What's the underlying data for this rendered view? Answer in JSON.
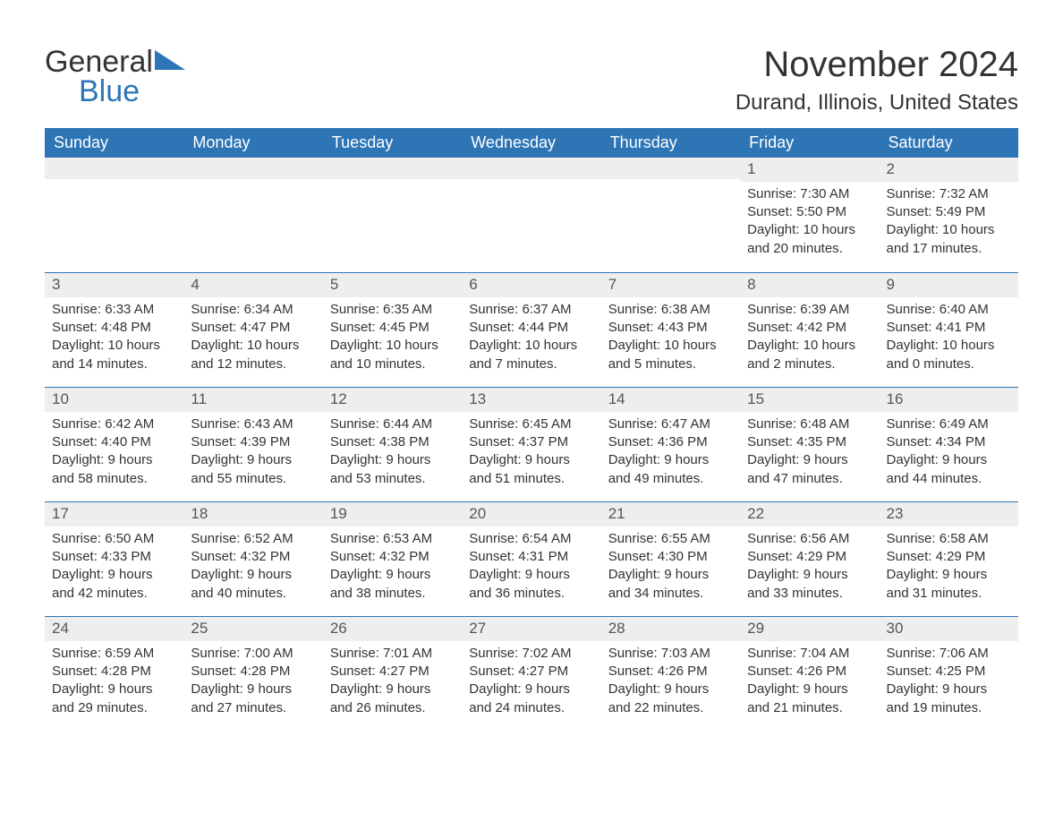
{
  "logo": {
    "general": "General",
    "blue": "Blue",
    "shape_color": "#2e75b6"
  },
  "title": "November 2024",
  "location": "Durand, Illinois, United States",
  "header_bg": "#2e75b6",
  "header_fg": "#ffffff",
  "daynum_bg": "#eeeeee",
  "divider_color": "#2e75b6",
  "text_color": "#333333",
  "day_headers": [
    "Sunday",
    "Monday",
    "Tuesday",
    "Wednesday",
    "Thursday",
    "Friday",
    "Saturday"
  ],
  "weeks": [
    [
      null,
      null,
      null,
      null,
      null,
      {
        "n": "1",
        "sunrise": "Sunrise: 7:30 AM",
        "sunset": "Sunset: 5:50 PM",
        "day1": "Daylight: 10 hours",
        "day2": "and 20 minutes."
      },
      {
        "n": "2",
        "sunrise": "Sunrise: 7:32 AM",
        "sunset": "Sunset: 5:49 PM",
        "day1": "Daylight: 10 hours",
        "day2": "and 17 minutes."
      }
    ],
    [
      {
        "n": "3",
        "sunrise": "Sunrise: 6:33 AM",
        "sunset": "Sunset: 4:48 PM",
        "day1": "Daylight: 10 hours",
        "day2": "and 14 minutes."
      },
      {
        "n": "4",
        "sunrise": "Sunrise: 6:34 AM",
        "sunset": "Sunset: 4:47 PM",
        "day1": "Daylight: 10 hours",
        "day2": "and 12 minutes."
      },
      {
        "n": "5",
        "sunrise": "Sunrise: 6:35 AM",
        "sunset": "Sunset: 4:45 PM",
        "day1": "Daylight: 10 hours",
        "day2": "and 10 minutes."
      },
      {
        "n": "6",
        "sunrise": "Sunrise: 6:37 AM",
        "sunset": "Sunset: 4:44 PM",
        "day1": "Daylight: 10 hours",
        "day2": "and 7 minutes."
      },
      {
        "n": "7",
        "sunrise": "Sunrise: 6:38 AM",
        "sunset": "Sunset: 4:43 PM",
        "day1": "Daylight: 10 hours",
        "day2": "and 5 minutes."
      },
      {
        "n": "8",
        "sunrise": "Sunrise: 6:39 AM",
        "sunset": "Sunset: 4:42 PM",
        "day1": "Daylight: 10 hours",
        "day2": "and 2 minutes."
      },
      {
        "n": "9",
        "sunrise": "Sunrise: 6:40 AM",
        "sunset": "Sunset: 4:41 PM",
        "day1": "Daylight: 10 hours",
        "day2": "and 0 minutes."
      }
    ],
    [
      {
        "n": "10",
        "sunrise": "Sunrise: 6:42 AM",
        "sunset": "Sunset: 4:40 PM",
        "day1": "Daylight: 9 hours",
        "day2": "and 58 minutes."
      },
      {
        "n": "11",
        "sunrise": "Sunrise: 6:43 AM",
        "sunset": "Sunset: 4:39 PM",
        "day1": "Daylight: 9 hours",
        "day2": "and 55 minutes."
      },
      {
        "n": "12",
        "sunrise": "Sunrise: 6:44 AM",
        "sunset": "Sunset: 4:38 PM",
        "day1": "Daylight: 9 hours",
        "day2": "and 53 minutes."
      },
      {
        "n": "13",
        "sunrise": "Sunrise: 6:45 AM",
        "sunset": "Sunset: 4:37 PM",
        "day1": "Daylight: 9 hours",
        "day2": "and 51 minutes."
      },
      {
        "n": "14",
        "sunrise": "Sunrise: 6:47 AM",
        "sunset": "Sunset: 4:36 PM",
        "day1": "Daylight: 9 hours",
        "day2": "and 49 minutes."
      },
      {
        "n": "15",
        "sunrise": "Sunrise: 6:48 AM",
        "sunset": "Sunset: 4:35 PM",
        "day1": "Daylight: 9 hours",
        "day2": "and 47 minutes."
      },
      {
        "n": "16",
        "sunrise": "Sunrise: 6:49 AM",
        "sunset": "Sunset: 4:34 PM",
        "day1": "Daylight: 9 hours",
        "day2": "and 44 minutes."
      }
    ],
    [
      {
        "n": "17",
        "sunrise": "Sunrise: 6:50 AM",
        "sunset": "Sunset: 4:33 PM",
        "day1": "Daylight: 9 hours",
        "day2": "and 42 minutes."
      },
      {
        "n": "18",
        "sunrise": "Sunrise: 6:52 AM",
        "sunset": "Sunset: 4:32 PM",
        "day1": "Daylight: 9 hours",
        "day2": "and 40 minutes."
      },
      {
        "n": "19",
        "sunrise": "Sunrise: 6:53 AM",
        "sunset": "Sunset: 4:32 PM",
        "day1": "Daylight: 9 hours",
        "day2": "and 38 minutes."
      },
      {
        "n": "20",
        "sunrise": "Sunrise: 6:54 AM",
        "sunset": "Sunset: 4:31 PM",
        "day1": "Daylight: 9 hours",
        "day2": "and 36 minutes."
      },
      {
        "n": "21",
        "sunrise": "Sunrise: 6:55 AM",
        "sunset": "Sunset: 4:30 PM",
        "day1": "Daylight: 9 hours",
        "day2": "and 34 minutes."
      },
      {
        "n": "22",
        "sunrise": "Sunrise: 6:56 AM",
        "sunset": "Sunset: 4:29 PM",
        "day1": "Daylight: 9 hours",
        "day2": "and 33 minutes."
      },
      {
        "n": "23",
        "sunrise": "Sunrise: 6:58 AM",
        "sunset": "Sunset: 4:29 PM",
        "day1": "Daylight: 9 hours",
        "day2": "and 31 minutes."
      }
    ],
    [
      {
        "n": "24",
        "sunrise": "Sunrise: 6:59 AM",
        "sunset": "Sunset: 4:28 PM",
        "day1": "Daylight: 9 hours",
        "day2": "and 29 minutes."
      },
      {
        "n": "25",
        "sunrise": "Sunrise: 7:00 AM",
        "sunset": "Sunset: 4:28 PM",
        "day1": "Daylight: 9 hours",
        "day2": "and 27 minutes."
      },
      {
        "n": "26",
        "sunrise": "Sunrise: 7:01 AM",
        "sunset": "Sunset: 4:27 PM",
        "day1": "Daylight: 9 hours",
        "day2": "and 26 minutes."
      },
      {
        "n": "27",
        "sunrise": "Sunrise: 7:02 AM",
        "sunset": "Sunset: 4:27 PM",
        "day1": "Daylight: 9 hours",
        "day2": "and 24 minutes."
      },
      {
        "n": "28",
        "sunrise": "Sunrise: 7:03 AM",
        "sunset": "Sunset: 4:26 PM",
        "day1": "Daylight: 9 hours",
        "day2": "and 22 minutes."
      },
      {
        "n": "29",
        "sunrise": "Sunrise: 7:04 AM",
        "sunset": "Sunset: 4:26 PM",
        "day1": "Daylight: 9 hours",
        "day2": "and 21 minutes."
      },
      {
        "n": "30",
        "sunrise": "Sunrise: 7:06 AM",
        "sunset": "Sunset: 4:25 PM",
        "day1": "Daylight: 9 hours",
        "day2": "and 19 minutes."
      }
    ]
  ]
}
